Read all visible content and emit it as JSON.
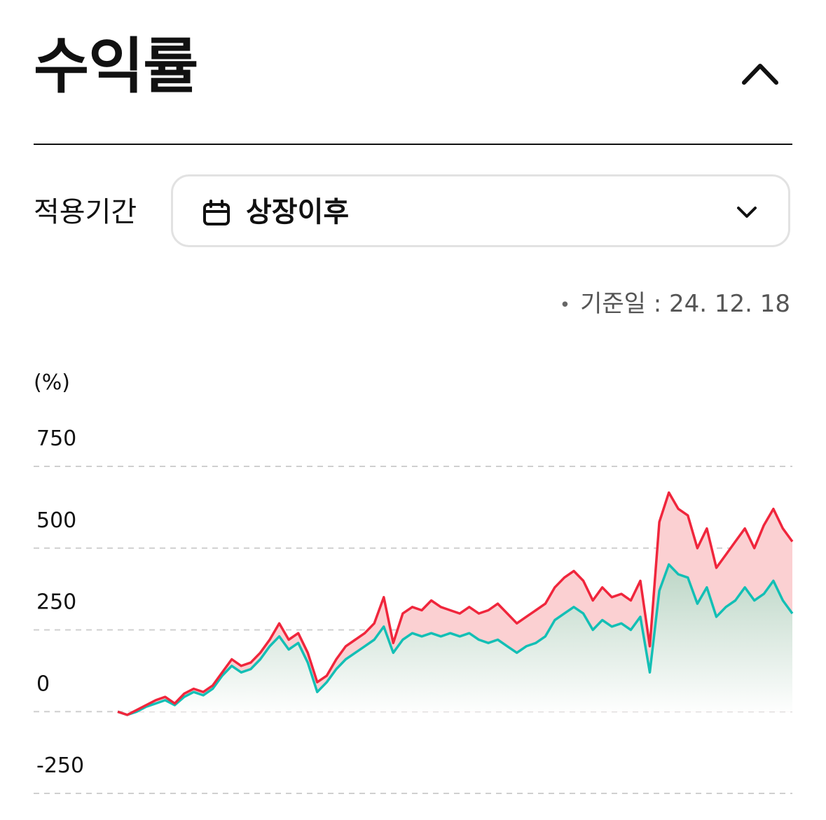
{
  "header": {
    "title": "수익률",
    "collapse_icon": "chevron-up-icon"
  },
  "period": {
    "label": "적용기간",
    "value": "상장이후",
    "icon": "calendar-icon",
    "dropdown_icon": "chevron-down-icon"
  },
  "base_date": {
    "label": "기준일 : 24. 12. 18"
  },
  "chart_data": {
    "type": "area",
    "unit": "(%)",
    "ylim": [
      -250,
      750
    ],
    "yticks": [
      750,
      500,
      250,
      0,
      -250
    ],
    "ytick_labels": [
      "750",
      "500",
      "250",
      "0",
      "-250"
    ],
    "grid": "dashed-horizontal",
    "series": [
      {
        "color": "#f0263c",
        "fill": "#fbd0d2",
        "values": [
          0,
          -10,
          5,
          20,
          35,
          45,
          25,
          55,
          70,
          60,
          80,
          120,
          160,
          140,
          150,
          180,
          220,
          270,
          220,
          240,
          180,
          90,
          110,
          160,
          200,
          220,
          240,
          270,
          350,
          210,
          300,
          320,
          310,
          340,
          320,
          310,
          300,
          320,
          300,
          310,
          330,
          300,
          270,
          290,
          310,
          330,
          380,
          410,
          430,
          400,
          340,
          380,
          350,
          360,
          340,
          400,
          200,
          580,
          670,
          620,
          600,
          500,
          560,
          440,
          480,
          520,
          560,
          500,
          570,
          620,
          560,
          520
        ]
      },
      {
        "color": "#13bfb5",
        "fill": "#cfe3d7",
        "values": [
          0,
          -10,
          0,
          15,
          25,
          35,
          20,
          45,
          60,
          50,
          70,
          110,
          140,
          120,
          130,
          160,
          200,
          230,
          190,
          210,
          150,
          60,
          90,
          130,
          160,
          180,
          200,
          220,
          260,
          180,
          220,
          240,
          230,
          240,
          230,
          240,
          230,
          240,
          220,
          210,
          220,
          200,
          180,
          200,
          210,
          230,
          280,
          300,
          320,
          300,
          250,
          280,
          260,
          270,
          250,
          290,
          120,
          370,
          450,
          420,
          410,
          330,
          380,
          290,
          320,
          340,
          380,
          340,
          360,
          400,
          340,
          300
        ]
      }
    ]
  }
}
